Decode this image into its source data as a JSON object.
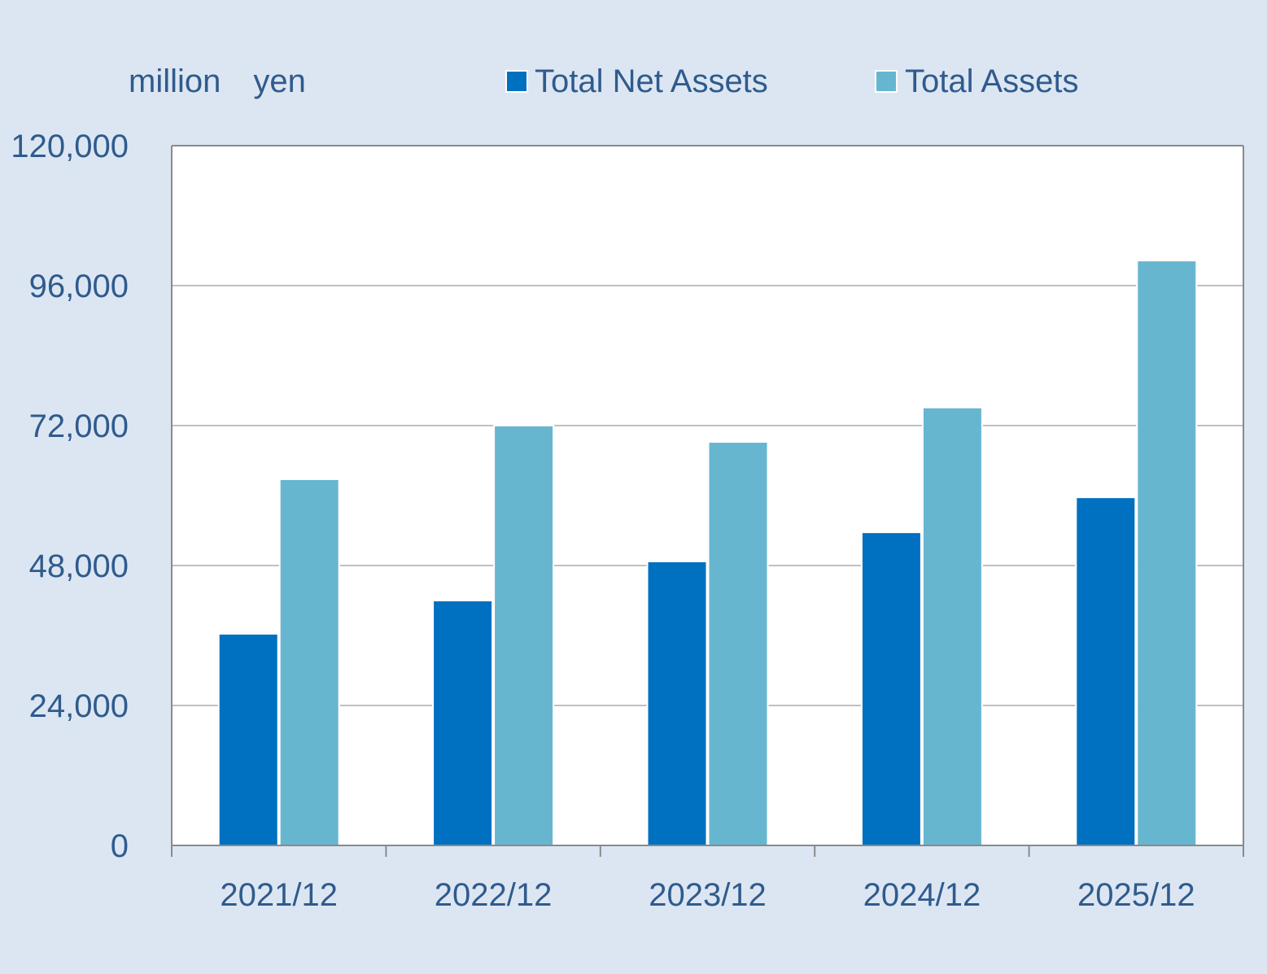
{
  "chart_data": {
    "type": "bar",
    "unit_label": "million　yen",
    "categories": [
      "2021/12",
      "2022/12",
      "2023/12",
      "2024/12",
      "2025/12"
    ],
    "series": [
      {
        "name": "Total Net Assets",
        "color": "#0070c0",
        "values": [
          36300,
          42000,
          48700,
          53700,
          59700
        ]
      },
      {
        "name": "Total Assets",
        "color": "#67b6d0",
        "values": [
          62800,
          72000,
          69200,
          75100,
          100300
        ]
      }
    ],
    "ylim": [
      0,
      120000
    ],
    "yticks": [
      0,
      24000,
      48000,
      72000,
      96000,
      120000
    ],
    "ytick_labels": [
      "0",
      "24,000",
      "48,000",
      "72,000",
      "96,000",
      "120,000"
    ],
    "grid": true,
    "legend_position": "top"
  }
}
